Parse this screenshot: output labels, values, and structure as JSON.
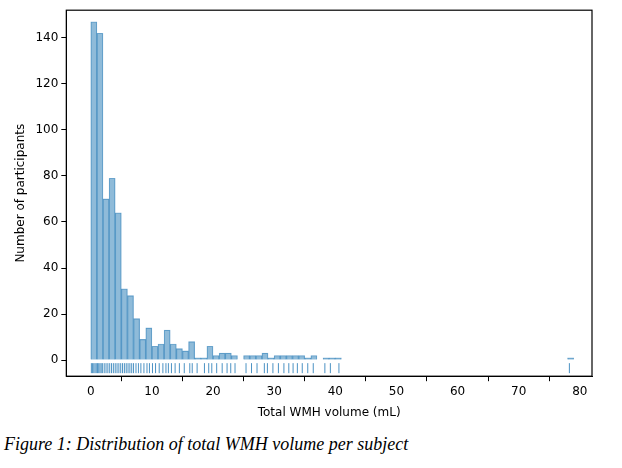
{
  "chart_data": {
    "type": "histogram",
    "caption": "Figure 1: Distribution of total WMH volume per subject",
    "xlabel": "Total WMH volume (mL)",
    "ylabel": "Number of participants",
    "bins": [
      0,
      1,
      2,
      3,
      4,
      5,
      6,
      7,
      8,
      9,
      10,
      11,
      12,
      13,
      14,
      15,
      16,
      17,
      18,
      19,
      20,
      21,
      22,
      23,
      24,
      25,
      26,
      27,
      28,
      29,
      30,
      31,
      32,
      33,
      34,
      35,
      36,
      37,
      38,
      39,
      40,
      41,
      42,
      43,
      44,
      45,
      46,
      47,
      48,
      49,
      50,
      51,
      52,
      53,
      54,
      55,
      56,
      57,
      58,
      59,
      60,
      61,
      62,
      63,
      64,
      65,
      66,
      67,
      68,
      69,
      70,
      71,
      72,
      73,
      74,
      75,
      76,
      77,
      78,
      79
    ],
    "values": [
      147,
      142,
      70,
      79,
      64,
      31,
      28,
      18,
      9,
      14,
      6,
      7,
      13,
      7,
      5,
      4,
      8,
      1,
      1,
      6,
      2,
      3,
      3,
      2,
      0,
      2,
      2,
      2,
      3,
      1,
      2,
      2,
      2,
      2,
      2,
      1,
      2,
      0,
      1,
      1,
      1,
      0,
      0,
      0,
      0,
      0,
      0,
      0,
      0,
      0,
      0,
      0,
      0,
      0,
      0,
      0,
      0,
      0,
      0,
      0,
      0,
      0,
      0,
      0,
      0,
      0,
      0,
      0,
      0,
      0,
      0,
      0,
      0,
      0,
      0,
      0,
      0,
      0,
      1
    ],
    "rug": [
      0.1,
      0.3,
      0.5,
      0.7,
      0.9,
      1.1,
      1.3,
      1.5,
      1.7,
      1.9,
      2.2,
      2.5,
      2.8,
      3.1,
      3.4,
      3.7,
      4.0,
      4.3,
      4.6,
      4.9,
      5.2,
      5.5,
      5.8,
      6.1,
      6.4,
      6.7,
      7.0,
      7.4,
      7.8,
      8.2,
      8.7,
      9.2,
      9.6,
      10.1,
      10.6,
      11.2,
      11.8,
      12.3,
      12.7,
      13.2,
      13.8,
      14.5,
      15.3,
      16.2,
      16.6,
      17.4,
      18.6,
      19.3,
      19.8,
      20.6,
      21.5,
      22.3,
      22.9,
      23.6,
      25.4,
      26.3,
      27.2,
      28.4,
      28.9,
      29.8,
      30.7,
      31.6,
      32.4,
      33.1,
      33.8,
      34.6,
      35.5,
      36.4,
      38.3,
      39.2,
      40.6,
      78.3
    ],
    "color": "#1f77b4",
    "xlim": [
      -4,
      82
    ],
    "xticks": [
      0,
      10,
      20,
      30,
      40,
      50,
      60,
      70,
      80
    ],
    "ylim": [
      -7,
      152
    ],
    "yticks": [
      0,
      20,
      40,
      60,
      80,
      100,
      120,
      140
    ],
    "grid": false
  }
}
